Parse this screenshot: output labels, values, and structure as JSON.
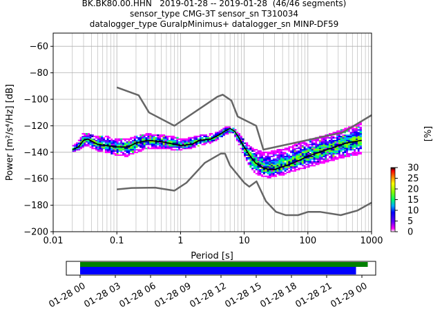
{
  "titles": {
    "line1": "BK.BK80.00.HHN   2019-01-28 -- 2019-01-28  (46/46 segments)",
    "line2": "sensor_type CMG-3T sensor_sn T310034",
    "line3": "datalogger_type GuralpMinimus+ datalogger_sn MINP-DF59"
  },
  "chart_data": [
    {
      "type": "heatmap",
      "xlabel": "Period [s]",
      "ylabel": "Power [m²/s⁴/Hz] [dB]",
      "xscale": "log",
      "xlim": [
        0.01,
        1000
      ],
      "ylim": [
        -200,
        -50
      ],
      "xticks": [
        {
          "v": 0.01,
          "label": "0.01"
        },
        {
          "v": 0.1,
          "label": "0.1"
        },
        {
          "v": 1,
          "label": "1"
        },
        {
          "v": 10,
          "label": "10"
        },
        {
          "v": 100,
          "label": "100"
        },
        {
          "v": 1000,
          "label": "1000"
        }
      ],
      "yticks": [
        -60,
        -80,
        -100,
        -120,
        -140,
        -160,
        -180,
        -200
      ],
      "grid": true,
      "colorbar": {
        "label": "[%]",
        "ticks": [
          0,
          5,
          10,
          15,
          20,
          25,
          30
        ],
        "range": [
          0,
          30
        ],
        "colors": [
          "#ffffff",
          "#ff00ff",
          "#6600ff",
          "#0000ff",
          "#00aaff",
          "#00ff66",
          "#88ff00",
          "#ffff00",
          "#ff8800",
          "#ff0000",
          "#000000"
        ]
      },
      "series": [
        {
          "style": "gray-model",
          "color": "#666666",
          "x": [
            0.1,
            0.22,
            0.32,
            0.8,
            3.8,
            4.6,
            6.3,
            7.9,
            15.4,
            20,
            354,
            1000
          ],
          "y": [
            -91,
            -97,
            -110,
            -120,
            -98,
            -96.5,
            -101,
            -113,
            -120,
            -138,
            -125,
            -112
          ]
        },
        {
          "style": "gray-model",
          "color": "#666666",
          "x": [
            0.1,
            0.17,
            0.4,
            0.8,
            1.24,
            2.4,
            4.3,
            5,
            6,
            10,
            12,
            15.6,
            21.9,
            31.6,
            45,
            70,
            101,
            154,
            328,
            600,
            1000
          ],
          "y": [
            -168,
            -167,
            -166.7,
            -169,
            -163,
            -148,
            -141,
            -141,
            -150,
            -163,
            -166,
            -162,
            -177,
            -185,
            -187.5,
            -187.5,
            -185,
            -185,
            -187.5,
            -184,
            -178
          ]
        },
        {
          "style": "black-mean",
          "color": "#000000",
          "x": [
            0.02,
            0.025,
            0.03,
            0.035,
            0.05,
            0.07,
            0.1,
            0.15,
            0.2,
            0.3,
            0.5,
            0.8,
            1,
            1.5,
            2,
            3,
            4,
            5,
            6,
            7,
            8,
            10,
            12,
            15,
            20,
            25,
            30,
            40,
            60,
            100,
            200,
            400,
            700
          ],
          "y": [
            -138,
            -136,
            -131,
            -130,
            -134,
            -135,
            -136,
            -136,
            -133,
            -131,
            -132,
            -134,
            -135,
            -134,
            -131,
            -130,
            -127,
            -124,
            -122,
            -124,
            -128,
            -136,
            -142,
            -148,
            -152,
            -153,
            -153,
            -151,
            -148,
            -143,
            -138,
            -133,
            -131
          ]
        },
        {
          "style": "density-band",
          "x": [
            0.02,
            0.025,
            0.03,
            0.035,
            0.05,
            0.07,
            0.1,
            0.15,
            0.2,
            0.3,
            0.5,
            0.8,
            1,
            1.5,
            2,
            3,
            4,
            5,
            6,
            7,
            8,
            10,
            12,
            15,
            20,
            25,
            30,
            40,
            60,
            100,
            200,
            400,
            700
          ],
          "y_upper": [
            -135,
            -132,
            -125,
            -126,
            -128,
            -128,
            -130,
            -130,
            -128,
            -126,
            -127,
            -128,
            -130,
            -129,
            -127,
            -126,
            -124,
            -121,
            -121,
            -122,
            -125,
            -131,
            -135,
            -138,
            -140,
            -140,
            -139,
            -138,
            -135,
            -131,
            -127,
            -122,
            -118
          ],
          "y_lower": [
            -140,
            -139,
            -136,
            -135,
            -139,
            -140,
            -142,
            -143,
            -140,
            -137,
            -137,
            -138,
            -138,
            -137,
            -135,
            -133,
            -130,
            -127,
            -125,
            -127,
            -132,
            -142,
            -150,
            -156,
            -158,
            -159,
            -158,
            -157,
            -154,
            -151,
            -147,
            -143,
            -141
          ]
        }
      ]
    },
    {
      "type": "bar",
      "xlim": [
        "01-28 00",
        "01-29 00"
      ],
      "xticks": [
        "01-28 00",
        "01-28 03",
        "01-28 06",
        "01-28 09",
        "01-28 12",
        "01-28 15",
        "01-28 18",
        "01-28 21",
        "01-29 00"
      ],
      "series": [
        {
          "color": "#008000",
          "range_hours": [
            0,
            24.5
          ]
        },
        {
          "color": "#0000ff",
          "range_hours": [
            0,
            23.5
          ]
        }
      ]
    }
  ]
}
